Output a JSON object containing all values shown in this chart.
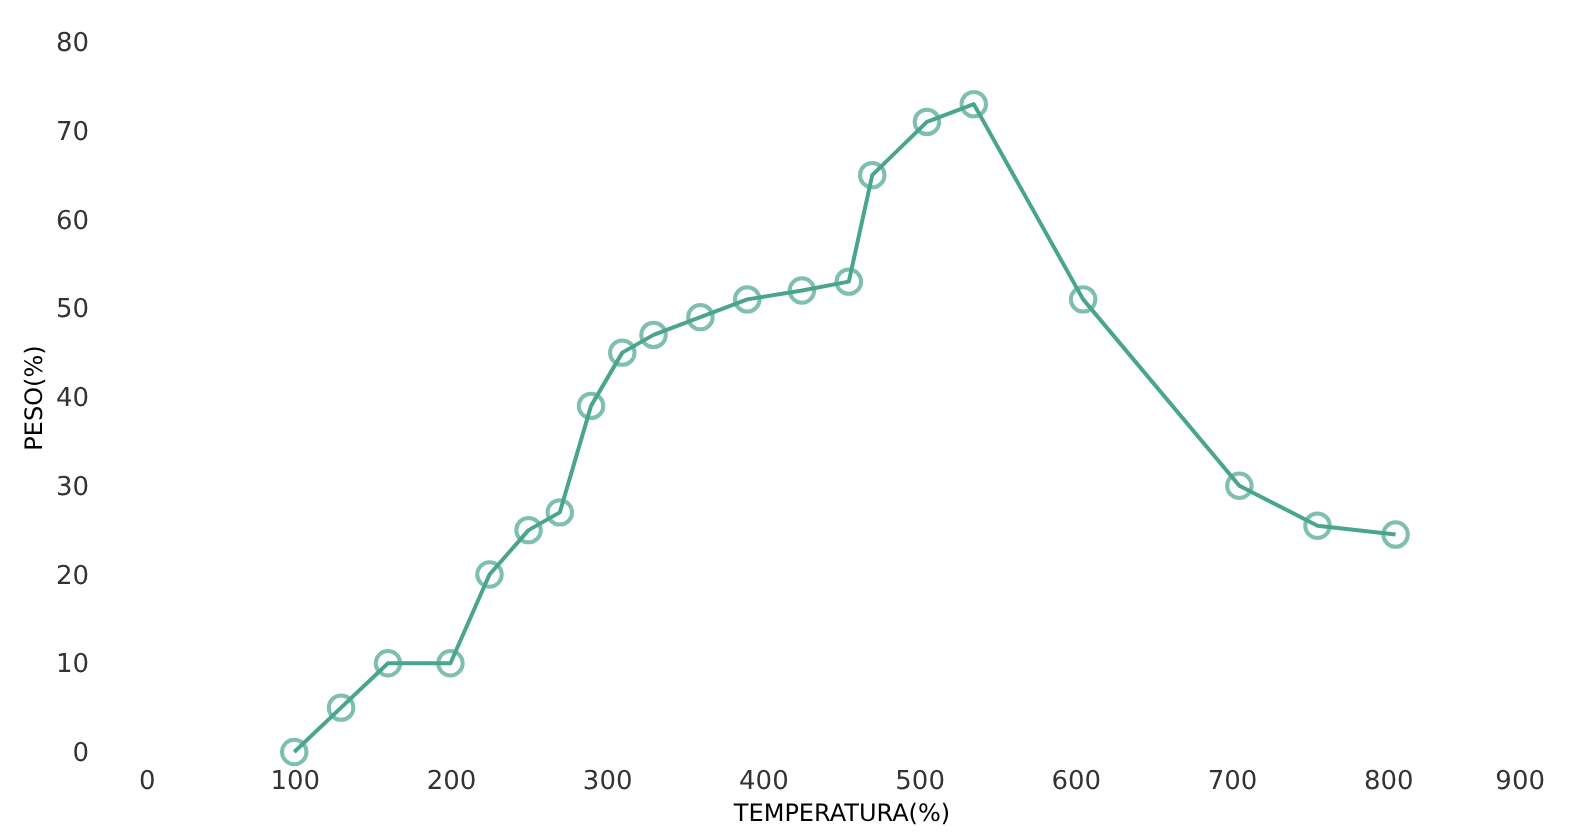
{
  "chart_data": {
    "type": "line",
    "xlabel": "TEMPERATURA(%)",
    "ylabel": "PESO(%)",
    "xlim": [
      0,
      900
    ],
    "xticks": [
      0,
      100,
      200,
      300,
      400,
      500,
      600,
      700,
      800,
      900
    ],
    "ylim": [
      0,
      80
    ],
    "yticks": [
      0,
      10,
      20,
      30,
      40,
      50,
      60,
      70,
      80
    ],
    "grid": false,
    "marker": "circle",
    "line_style": "solid",
    "series": [
      {
        "color": "#4aa58f",
        "x": [
          100,
          130,
          160,
          200,
          225,
          250,
          270,
          290,
          310,
          330,
          360,
          390,
          425,
          455,
          470,
          505,
          535,
          605,
          705,
          755,
          805
        ],
        "values": [
          0,
          5,
          10,
          10,
          20,
          25,
          27,
          39,
          45,
          47,
          49,
          51,
          52,
          53,
          65,
          71,
          73,
          51,
          30,
          25.5,
          24.5
        ]
      }
    ]
  }
}
